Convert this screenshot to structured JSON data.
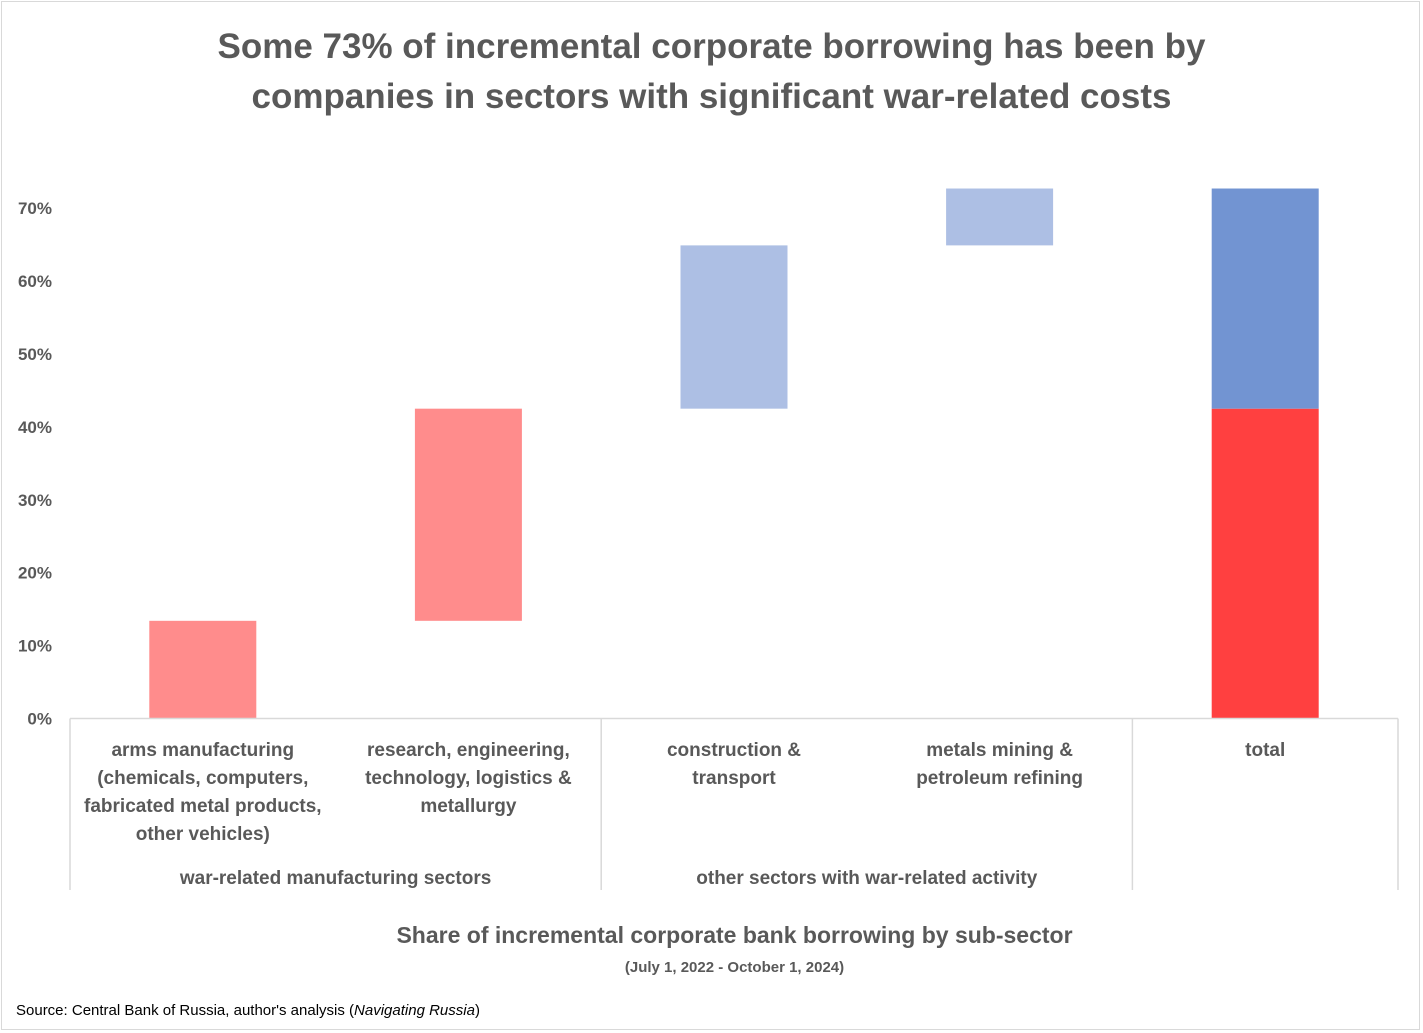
{
  "title": {
    "line1": "Some 73% of incremental corporate borrowing has been by",
    "line2": "companies in sectors with significant war-related costs"
  },
  "x_axis": {
    "title": "Share of incremental corporate bank borrowing by sub-sector",
    "subtitle": "(July 1, 2022 - October 1, 2024)"
  },
  "source": {
    "prefix": "Source: Central Bank of Russia, author's analysis (",
    "italic": "Navigating Russia",
    "suffix": ")"
  },
  "colors": {
    "war_step": "#ff8c8c",
    "other_step": "#adbfe4",
    "total_war": "#ff4040",
    "total_other": "#7294d2",
    "axis": "#d9d9d9",
    "text": "#595959"
  },
  "chart_data": {
    "type": "bar",
    "subtype": "waterfall",
    "y_ticks": [
      "0%",
      "10%",
      "20%",
      "30%",
      "40%",
      "50%",
      "60%",
      "70%"
    ],
    "ylim": [
      0,
      73
    ],
    "grid": false,
    "categories": [
      {
        "label_lines": [
          "arms manufacturing",
          "(chemicals, computers,",
          "fabricated metal products,",
          "other vehicles)"
        ],
        "group": "war-related manufacturing sectors",
        "base": 0,
        "value": 13.4,
        "color_key": "war_step"
      },
      {
        "label_lines": [
          "research, engineering,",
          "technology, logistics &",
          "metallurgy"
        ],
        "group": "war-related manufacturing sectors",
        "base": 13.4,
        "value": 29.1,
        "color_key": "war_step"
      },
      {
        "label_lines": [
          "construction &",
          "transport"
        ],
        "group": "other sectors with war-related activity",
        "base": 42.5,
        "value": 22.4,
        "color_key": "other_step"
      },
      {
        "label_lines": [
          "metals mining &",
          "petroleum refining"
        ],
        "group": "other sectors with war-related activity",
        "base": 64.9,
        "value": 7.8,
        "color_key": "other_step"
      },
      {
        "label_lines": [
          "total"
        ],
        "group": "",
        "stack": [
          {
            "name": "war-related manufacturing sectors",
            "value": 42.5,
            "color_key": "total_war"
          },
          {
            "name": "other sectors with war-related activity",
            "value": 30.2,
            "color_key": "total_other"
          }
        ]
      }
    ],
    "groups": [
      "war-related manufacturing sectors",
      "other sectors with war-related activity",
      ""
    ]
  }
}
